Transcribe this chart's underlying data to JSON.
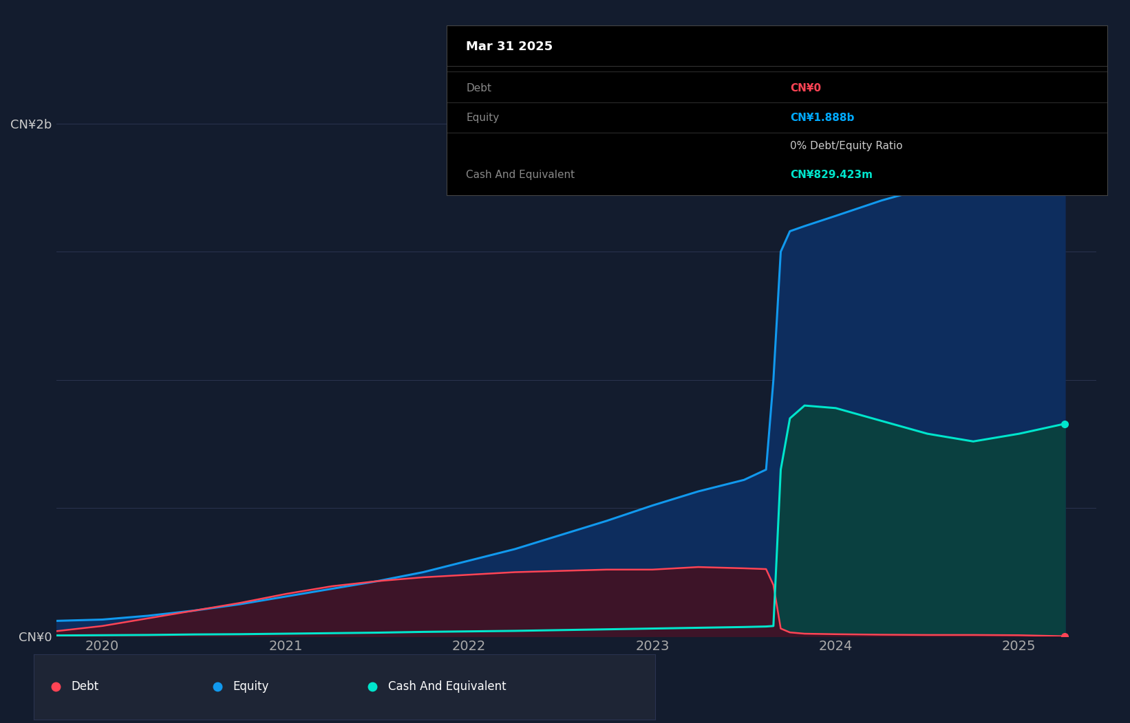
{
  "background_color": "#131c2e",
  "plot_bg_color": "#131c2e",
  "ylim": [
    0,
    2200000000.0
  ],
  "yticks": [
    0,
    2000000000.0
  ],
  "ytick_labels": [
    "CN¥0",
    "CN¥2b"
  ],
  "xlim": [
    2019.75,
    2025.42
  ],
  "xticks": [
    2020,
    2021,
    2022,
    2023,
    2024,
    2025
  ],
  "grid_color": "#2a3350",
  "tooltip": {
    "title": "Mar 31 2025",
    "rows": [
      {
        "label": "Debt",
        "value": "CN¥0",
        "value_color": "#ff4455"
      },
      {
        "label": "Equity",
        "value": "CN¥1.888b",
        "value_color": "#00aaff"
      },
      {
        "label": "",
        "value": "0% Debt/Equity Ratio",
        "value_color": "#cccccc"
      },
      {
        "label": "Cash And Equivalent",
        "value": "CN¥829.423m",
        "value_color": "#00e5cc"
      }
    ]
  },
  "debt_line_color": "#ff4455",
  "equity_line_color": "#1199ee",
  "cash_line_color": "#00e5cc",
  "equity_fill_color": "#0d2d5e",
  "cash_fill_color": "#0a4040",
  "debt_fill_color": "#3d1428",
  "time_points": [
    2019.75,
    2020.0,
    2020.25,
    2020.5,
    2020.75,
    2021.0,
    2021.25,
    2021.5,
    2021.75,
    2022.0,
    2022.25,
    2022.5,
    2022.75,
    2023.0,
    2023.25,
    2023.5,
    2023.62,
    2023.66,
    2023.7,
    2023.75,
    2023.83,
    2024.0,
    2024.25,
    2024.5,
    2024.75,
    2025.0,
    2025.25
  ],
  "equity_values": [
    60000000.0,
    65000000.0,
    80000000.0,
    100000000.0,
    125000000.0,
    155000000.0,
    185000000.0,
    215000000.0,
    250000000.0,
    295000000.0,
    340000000.0,
    395000000.0,
    450000000.0,
    510000000.0,
    565000000.0,
    610000000.0,
    650000000.0,
    1000000000.0,
    1500000000.0,
    1580000000.0,
    1600000000.0,
    1640000000.0,
    1700000000.0,
    1750000000.0,
    1800000000.0,
    1850000000.0,
    1888000000.0
  ],
  "debt_values": [
    20000000.0,
    40000000.0,
    70000000.0,
    100000000.0,
    130000000.0,
    165000000.0,
    195000000.0,
    215000000.0,
    230000000.0,
    240000000.0,
    250000000.0,
    255000000.0,
    260000000.0,
    260000000.0,
    270000000.0,
    265000000.0,
    262000000.0,
    200000000.0,
    30000000.0,
    15000000.0,
    10000000.0,
    8000000.0,
    6000000.0,
    5000000.0,
    5000000.0,
    4000000.0,
    0.0
  ],
  "cash_values": [
    3000000.0,
    4000000.0,
    5000000.0,
    7000000.0,
    8000000.0,
    10000000.0,
    12000000.0,
    14000000.0,
    17000000.0,
    19000000.0,
    21000000.0,
    24000000.0,
    27000000.0,
    30000000.0,
    33000000.0,
    36000000.0,
    38000000.0,
    40000000.0,
    650000000.0,
    850000000.0,
    900000000.0,
    890000000.0,
    840000000.0,
    790000000.0,
    760000000.0,
    790000000.0,
    829000000.0
  ]
}
